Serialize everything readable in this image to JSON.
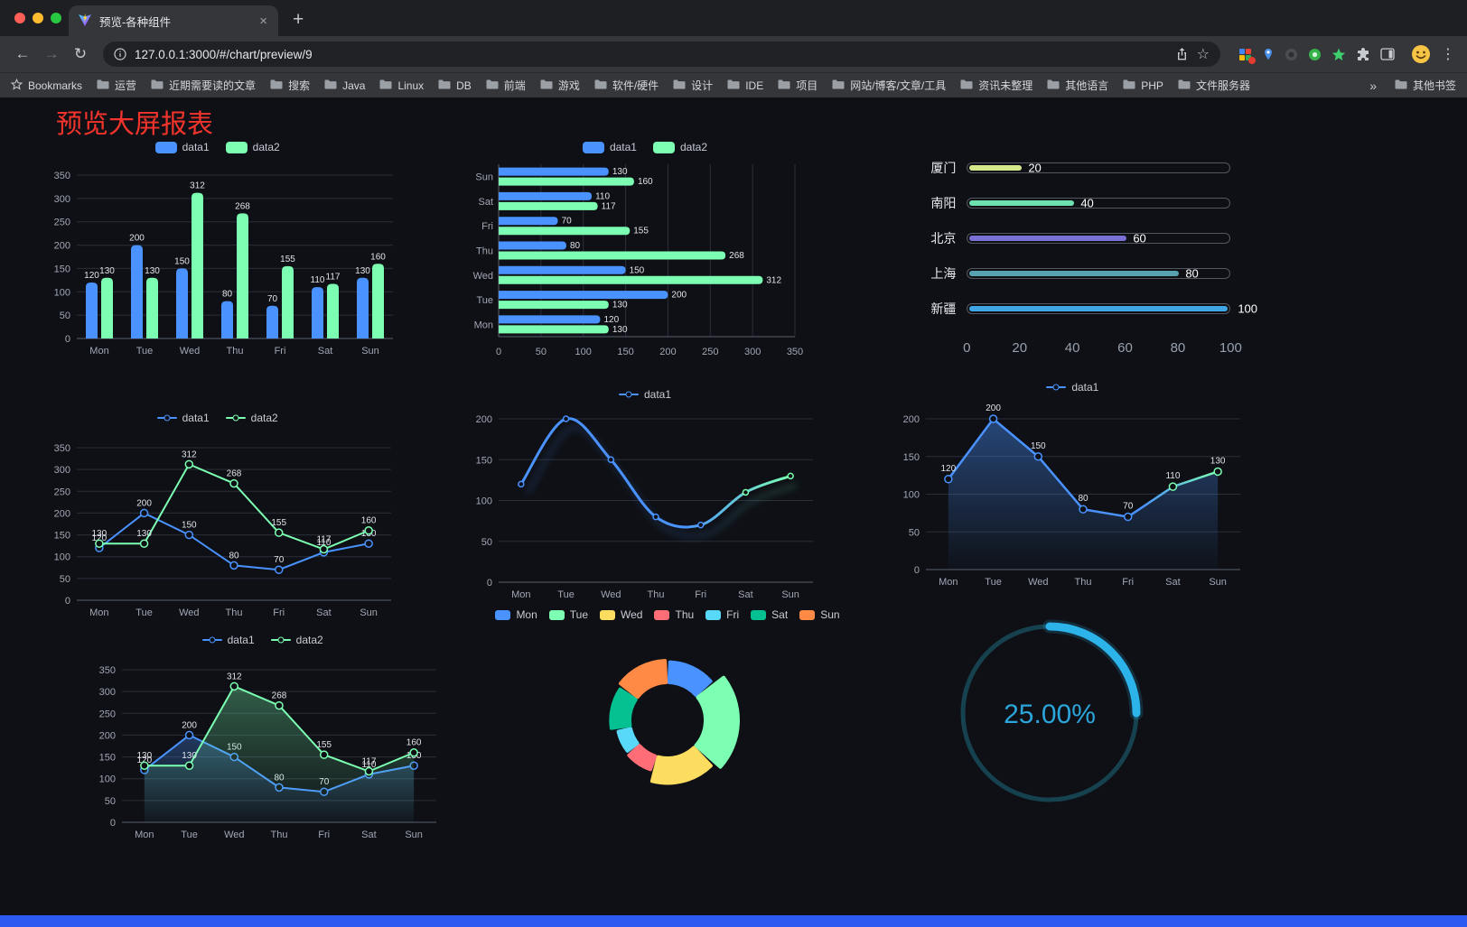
{
  "browser": {
    "tab_title": "预览-各种组件",
    "url": "127.0.0.1:3000/#/chart/preview/9",
    "nav": {
      "back": "←",
      "forward": "→",
      "reload": "↻",
      "star": "☆",
      "menu": "⋮",
      "close": "×",
      "new_tab": "+"
    },
    "bookmarks_label": "Bookmarks",
    "bookmarks": [
      "运营",
      "近期需要读的文章",
      "搜索",
      "Java",
      "Linux",
      "DB",
      "前端",
      "游戏",
      "软件/硬件",
      "设计",
      "IDE",
      "项目",
      "网站/博客/文章/工具",
      "资讯未整理",
      "其他语言",
      "PHP",
      "文件服务器"
    ],
    "bookmarks_overflow": "»",
    "other_bookmarks": "其他书签"
  },
  "page": {
    "title": "预览大屏报表",
    "title_color": "#f4342c",
    "background": "#0e1015"
  },
  "chart_data": [
    {
      "id": "grouped-bar",
      "type": "bar",
      "categories": [
        "Mon",
        "Tue",
        "Wed",
        "Thu",
        "Fri",
        "Sat",
        "Sun"
      ],
      "series": [
        {
          "name": "data1",
          "color": "#4992ff",
          "values": [
            120,
            200,
            150,
            80,
            70,
            110,
            130
          ]
        },
        {
          "name": "data2",
          "color": "#7cffb2",
          "values": [
            130,
            130,
            312,
            268,
            155,
            117,
            160
          ]
        }
      ],
      "ylim": [
        0,
        350
      ],
      "ystep": 50,
      "legend_position": "top",
      "grid": true
    },
    {
      "id": "horizontal-bar",
      "type": "bar-horizontal",
      "categories": [
        "Mon",
        "Tue",
        "Wed",
        "Thu",
        "Fri",
        "Sat",
        "Sun"
      ],
      "series": [
        {
          "name": "data1",
          "color": "#4992ff",
          "values": [
            120,
            200,
            150,
            80,
            70,
            110,
            130
          ]
        },
        {
          "name": "data2",
          "color": "#7cffb2",
          "values": [
            130,
            130,
            312,
            268,
            155,
            117,
            160
          ]
        }
      ],
      "xlim": [
        0,
        350
      ],
      "xstep": 50,
      "legend_position": "top",
      "grid": true
    },
    {
      "id": "capsule-progress",
      "type": "progress-bars",
      "items": [
        {
          "label": "厦门",
          "value": 20,
          "color": "#d6e88c"
        },
        {
          "label": "南阳",
          "value": 40,
          "color": "#6fe1b1"
        },
        {
          "label": "北京",
          "value": 60,
          "color": "#7b70d6"
        },
        {
          "label": "上海",
          "value": 80,
          "color": "#57a4b0"
        },
        {
          "label": "新疆",
          "value": 100,
          "color": "#3fa7e6"
        }
      ],
      "xlim": [
        0,
        100
      ],
      "xticks": [
        0,
        20,
        40,
        60,
        80,
        100
      ]
    },
    {
      "id": "two-series-line",
      "type": "line",
      "categories": [
        "Mon",
        "Tue",
        "Wed",
        "Thu",
        "Fri",
        "Sat",
        "Sun"
      ],
      "series": [
        {
          "name": "data1",
          "color": "#4992ff",
          "values": [
            120,
            200,
            150,
            80,
            70,
            110,
            130
          ],
          "area": false
        },
        {
          "name": "data2",
          "color": "#7cffb2",
          "values": [
            130,
            130,
            312,
            268,
            155,
            117,
            160
          ],
          "area": false
        }
      ],
      "ylim": [
        0,
        350
      ],
      "ystep": 50,
      "show_labels": true,
      "legend_position": "top"
    },
    {
      "id": "gradient-shadow-line",
      "type": "line-gradient",
      "categories": [
        "Mon",
        "Tue",
        "Wed",
        "Thu",
        "Fri",
        "Sat",
        "Sun"
      ],
      "series": [
        {
          "name": "data1",
          "values": [
            120,
            200,
            150,
            80,
            70,
            110,
            130
          ]
        }
      ],
      "ylim": [
        0,
        200
      ],
      "ystep": 50,
      "gradient": [
        "#4992ff",
        "#7cffb2"
      ],
      "legend_position": "top"
    },
    {
      "id": "area-line",
      "type": "line-area",
      "categories": [
        "Mon",
        "Tue",
        "Wed",
        "Thu",
        "Fri",
        "Sat",
        "Sun"
      ],
      "series": [
        {
          "name": "data1",
          "values": [
            120,
            200,
            150,
            80,
            70,
            110,
            130
          ]
        }
      ],
      "ylim": [
        0,
        200
      ],
      "ystep": 50,
      "gradient": [
        "#4992ff",
        "#7cffb2"
      ],
      "show_labels": true,
      "legend_position": "top"
    },
    {
      "id": "two-series-area-line",
      "type": "line",
      "categories": [
        "Mon",
        "Tue",
        "Wed",
        "Thu",
        "Fri",
        "Sat",
        "Sun"
      ],
      "series": [
        {
          "name": "data1",
          "color": "#4992ff",
          "values": [
            120,
            200,
            150,
            80,
            70,
            110,
            130
          ],
          "area": true
        },
        {
          "name": "data2",
          "color": "#7cffb2",
          "values": [
            130,
            130,
            312,
            268,
            155,
            117,
            160
          ],
          "area": true
        }
      ],
      "ylim": [
        0,
        350
      ],
      "ystep": 50,
      "show_labels": true,
      "legend_position": "top"
    },
    {
      "id": "rose-donut",
      "type": "pie",
      "categories": [
        "Mon",
        "Tue",
        "Wed",
        "Thu",
        "Fri",
        "Sat",
        "Sun"
      ],
      "values": [
        120,
        200,
        150,
        80,
        70,
        110,
        130
      ],
      "colors": [
        "#4992ff",
        "#7cffb2",
        "#fddd60",
        "#ff6e76",
        "#58d9f9",
        "#05c091",
        "#ff8a45"
      ],
      "rose": true,
      "inner_radius_ratio": 0.55,
      "legend_position": "top"
    },
    {
      "id": "progress-ring",
      "type": "progress-ring",
      "value": 25,
      "label": "25.00%",
      "color": "#2bb3ea",
      "track_color": "#16414f",
      "text_color": "#2ba5da"
    }
  ]
}
